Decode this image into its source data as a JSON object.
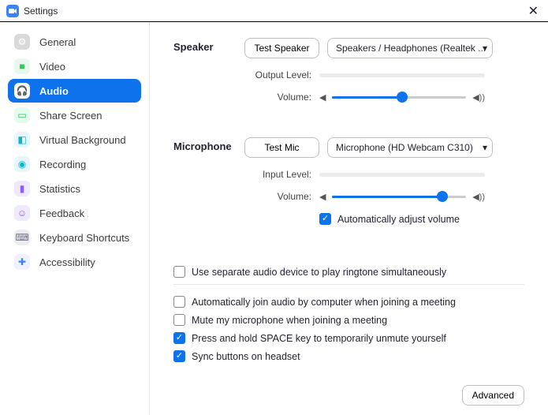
{
  "window": {
    "title": "Settings"
  },
  "sidebar": {
    "items": [
      {
        "label": "General",
        "icon_bg": "#d9d9d9",
        "glyph": "⚙",
        "glyph_color": "#ffffff"
      },
      {
        "label": "Video",
        "icon_bg": "#e8f8ec",
        "glyph": "■",
        "glyph_color": "#34c759"
      },
      {
        "label": "Audio",
        "icon_bg": "#ffffff",
        "glyph": "🎧",
        "glyph_color": "#0e72ed",
        "active": true
      },
      {
        "label": "Share Screen",
        "icon_bg": "#e6fbee",
        "glyph": "▭",
        "glyph_color": "#22c55e"
      },
      {
        "label": "Virtual Background",
        "icon_bg": "#e6f6fb",
        "glyph": "◧",
        "glyph_color": "#06b6d4"
      },
      {
        "label": "Recording",
        "icon_bg": "#e6f6fb",
        "glyph": "◉",
        "glyph_color": "#06b6d4"
      },
      {
        "label": "Statistics",
        "icon_bg": "#f0e9fb",
        "glyph": "▮",
        "glyph_color": "#8b5cf6"
      },
      {
        "label": "Feedback",
        "icon_bg": "#efe9fb",
        "glyph": "☺",
        "glyph_color": "#8b5cf6"
      },
      {
        "label": "Keyboard Shortcuts",
        "icon_bg": "#ecebef",
        "glyph": "⌨",
        "glyph_color": "#6b7280"
      },
      {
        "label": "Accessibility",
        "icon_bg": "#eef2fb",
        "glyph": "✚",
        "glyph_color": "#3b82f6"
      }
    ]
  },
  "audio": {
    "speaker": {
      "heading": "Speaker",
      "test_btn": "Test Speaker",
      "device": "Speakers / Headphones (Realtek ...",
      "output_label": "Output Level:",
      "volume_label": "Volume:",
      "volume_percent": 52
    },
    "mic": {
      "heading": "Microphone",
      "test_btn": "Test Mic",
      "device": "Microphone (HD Webcam C310)",
      "input_label": "Input Level:",
      "volume_label": "Volume:",
      "volume_percent": 82,
      "auto_adjust_label": "Automatically adjust volume",
      "auto_adjust_checked": true
    },
    "options": [
      {
        "label": "Use separate audio device to play ringtone simultaneously",
        "checked": false
      },
      {
        "label": "Automatically join audio by computer when joining a meeting",
        "checked": false
      },
      {
        "label": "Mute my microphone when joining a meeting",
        "checked": false
      },
      {
        "label": "Press and hold SPACE key to temporarily unmute yourself",
        "checked": true
      },
      {
        "label": "Sync buttons on headset",
        "checked": true
      }
    ],
    "advanced_btn": "Advanced"
  },
  "colors": {
    "accent": "#0e72ed",
    "border": "#bfbfbf",
    "track": "#ebebeb"
  }
}
